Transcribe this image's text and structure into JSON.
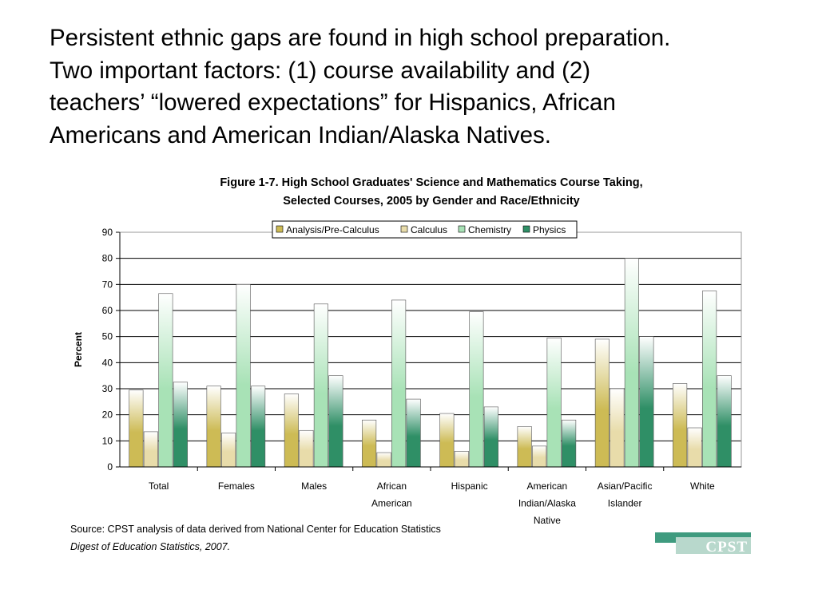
{
  "slide": {
    "text_lines": [
      "Persistent ethnic gaps are found in high school preparation.",
      "Two important factors: (1) course availability and (2)",
      "teachers’ “lowered expectations” for Hispanics, African",
      "Americans and American Indian/Alaska Natives."
    ]
  },
  "source": {
    "line1": "Source: CPST analysis of data derived from National Center for Education Statistics",
    "line2": "Digest of Education Statistics, 2007."
  },
  "logo": {
    "text": "CPST"
  },
  "colors": {
    "analysis": "#cdbb55",
    "calculus": "#e8dcaa",
    "chemistry": "#a8e2b6",
    "physics": "#2f8f66",
    "gridline": "#000000",
    "logo_band": "#3f9b7f",
    "logo_box": "#b8d8cc"
  },
  "chart_data": {
    "type": "bar",
    "title_line1": "Figure 1-7. High School Graduates' Science and Mathematics Course Taking,",
    "title_line2": "Selected Courses, 2005 by Gender and Race/Ethnicity",
    "xlabel": "",
    "ylabel": "Percent",
    "ylim": [
      0,
      90
    ],
    "yticks": [
      0,
      10,
      20,
      30,
      40,
      50,
      60,
      70,
      80,
      90
    ],
    "grid": true,
    "legend_position": "top-right",
    "categories": [
      [
        "Total"
      ],
      [
        "Females"
      ],
      [
        "Males"
      ],
      [
        "African",
        "American"
      ],
      [
        "Hispanic"
      ],
      [
        "American",
        "Indian/Alaska",
        "Native"
      ],
      [
        "Asian/Pacific",
        "Islander"
      ],
      [
        "White"
      ]
    ],
    "series": [
      {
        "name": "Analysis/Pre-Calculus",
        "values": [
          29.5,
          31,
          28,
          18,
          20.5,
          15.5,
          49,
          32
        ]
      },
      {
        "name": "Calculus",
        "values": [
          13.5,
          13,
          14,
          5.5,
          6,
          8,
          30,
          15
        ]
      },
      {
        "name": "Chemistry",
        "values": [
          66.5,
          70,
          62.5,
          64,
          59.5,
          49.5,
          80,
          67.5
        ]
      },
      {
        "name": "Physics",
        "values": [
          32.5,
          31,
          35,
          26,
          23,
          18,
          50,
          35
        ]
      }
    ]
  }
}
